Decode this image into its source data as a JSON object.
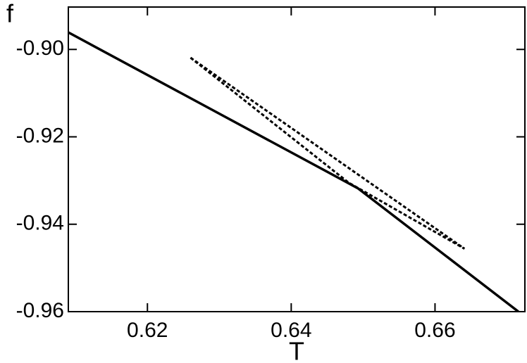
{
  "chart_data": {
    "type": "line",
    "x_label": "T",
    "y_label": "f",
    "xlim": [
      0.609,
      0.6725
    ],
    "ylim": [
      -0.96,
      -0.8903
    ],
    "xticks": [
      0.62,
      0.64,
      0.66
    ],
    "yticks": [
      {
        "value": -0.9,
        "label": "-0.90"
      },
      {
        "value": -0.92,
        "label": "-0.92"
      },
      {
        "value": -0.94,
        "label": "-0.94"
      },
      {
        "value": -0.96,
        "label": "-0.96"
      }
    ],
    "series": [
      {
        "color": "#000000",
        "style": "solid",
        "x": [
          0.609,
          0.6493,
          0.6716
        ],
        "values": [
          -0.8961,
          -0.9318,
          -0.96
        ]
      },
      {
        "color": "#000000",
        "style": "dashed",
        "x": [
          0.626,
          0.6641
        ],
        "values": [
          -0.9019,
          -0.9456
        ]
      },
      {
        "color": "#000000",
        "style": "dashed",
        "x": [
          0.626,
          0.648,
          0.6641
        ],
        "values": [
          -0.9019,
          -0.9305,
          -0.9456
        ]
      }
    ]
  }
}
